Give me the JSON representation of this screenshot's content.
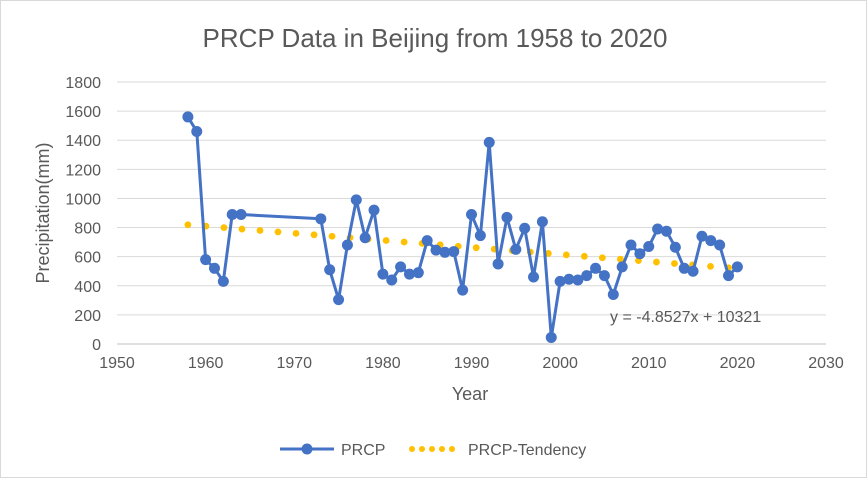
{
  "chart_data": {
    "type": "line",
    "title": "PRCP Data in Beijing from 1958 to 2020",
    "xlabel": "Year",
    "ylabel": "Precipitation(mm)",
    "xlim": [
      1950,
      2030
    ],
    "ylim": [
      0,
      1800
    ],
    "x_ticks": [
      "1950",
      "1960",
      "1970",
      "1980",
      "1990",
      "2000",
      "2010",
      "2020",
      "2030"
    ],
    "y_ticks": [
      "0",
      "200",
      "400",
      "600",
      "800",
      "1000",
      "1200",
      "1400",
      "1600",
      "1800"
    ],
    "grid": "horizontal",
    "legend": "bottom",
    "colors": {
      "series": "#4472c4",
      "trend": "#ffc000"
    },
    "series": [
      {
        "name": "PRCP",
        "x": [
          1958,
          1959,
          1960,
          1961,
          1962,
          1963,
          1964,
          1973,
          1974,
          1975,
          1976,
          1977,
          1978,
          1979,
          1980,
          1981,
          1982,
          1983,
          1984,
          1985,
          1986,
          1987,
          1988,
          1989,
          1990,
          1991,
          1992,
          1993,
          1994,
          1995,
          1996,
          1997,
          1998,
          1999,
          2000,
          2001,
          2002,
          2003,
          2004,
          2005,
          2006,
          2007,
          2008,
          2009,
          2010,
          2011,
          2012,
          2013,
          2014,
          2015,
          2016,
          2017,
          2018,
          2019,
          2020
        ],
        "y": [
          1560,
          1460,
          580,
          520,
          430,
          890,
          890,
          860,
          510,
          305,
          680,
          990,
          730,
          920,
          480,
          440,
          530,
          480,
          490,
          710,
          645,
          630,
          635,
          370,
          890,
          745,
          1385,
          550,
          870,
          650,
          795,
          460,
          840,
          45,
          430,
          445,
          440,
          470,
          520,
          470,
          340,
          530,
          680,
          620,
          670,
          790,
          775,
          665,
          520,
          500,
          740,
          710,
          680,
          470,
          530
        ]
      }
    ],
    "trendline": {
      "name": "PRCP-Tendency",
      "type": "linear",
      "slope": -4.8527,
      "intercept": 10321,
      "equation": "y = -4.8527x + 10321",
      "x_start": 1958,
      "x_end": 2019
    },
    "legend_labels": [
      "PRCP",
      "PRCP-Tendency"
    ]
  }
}
